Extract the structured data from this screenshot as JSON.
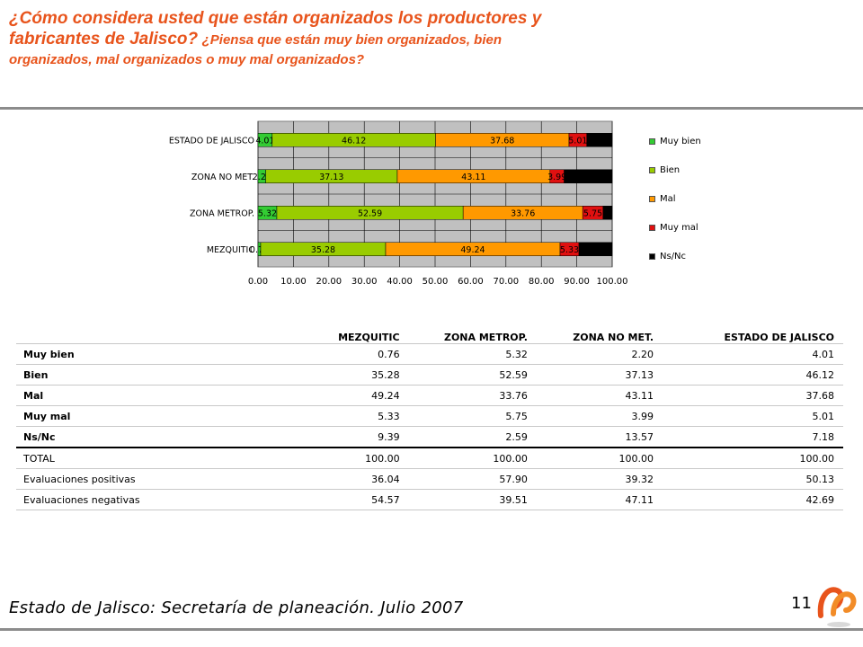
{
  "title": {
    "line_main": "¿Cómo considera usted que están organizados los productores y fabricantes de Jalisco?",
    "line_sub": "¿Piensa que están muy bien organizados, bien organizados, mal organizados o muy mal organizados?"
  },
  "chart_data": {
    "type": "bar",
    "orientation": "horizontal",
    "stacked": true,
    "categories": [
      "ESTADO DE JALISCO",
      "ZONA NO MET.",
      "ZONA METROP.",
      "MEZQUITIC"
    ],
    "series": [
      {
        "name": "Muy bien",
        "color": "#33cc33",
        "values": [
          4.01,
          2.2,
          5.32,
          0.76
        ],
        "labels": [
          "4.01",
          "2.20",
          "5.32",
          "0.76"
        ]
      },
      {
        "name": "Bien",
        "color": "#99cc00",
        "values": [
          46.12,
          37.13,
          52.59,
          35.28
        ],
        "labels": [
          "46.12",
          "37.13",
          "52.59",
          "35.28"
        ]
      },
      {
        "name": "Mal",
        "color": "#ff9900",
        "values": [
          37.68,
          43.11,
          33.76,
          49.24
        ],
        "labels": [
          "37.68",
          "43.11",
          "33.76",
          "49.24"
        ]
      },
      {
        "name": "Muy mal",
        "color": "#e01010",
        "values": [
          5.01,
          3.99,
          5.75,
          5.33
        ],
        "labels": [
          "5.01",
          "3.99",
          "5.75",
          "5.33"
        ]
      },
      {
        "name": "Ns/Nc",
        "color": "#000000",
        "values": [
          7.18,
          13.57,
          2.59,
          9.39
        ],
        "labels": [
          "",
          "",
          "",
          ""
        ]
      }
    ],
    "xlim": [
      0,
      100
    ],
    "xticks": [
      "0.00",
      "10.00",
      "20.00",
      "30.00",
      "40.00",
      "50.00",
      "60.00",
      "70.00",
      "80.00",
      "90.00",
      "100.00"
    ],
    "grid": true,
    "legend_position": "right",
    "plot_background": "#c0c0c0"
  },
  "table": {
    "columns": [
      "MEZQUITIC",
      "ZONA METROP.",
      "ZONA NO MET.",
      "ESTADO DE JALISCO"
    ],
    "rows": [
      {
        "label": "Muy bien",
        "values": [
          "0.76",
          "5.32",
          "2.20",
          "4.01"
        ]
      },
      {
        "label": "Bien",
        "values": [
          "35.28",
          "52.59",
          "37.13",
          "46.12"
        ]
      },
      {
        "label": "Mal",
        "values": [
          "49.24",
          "33.76",
          "43.11",
          "37.68"
        ]
      },
      {
        "label": "Muy mal",
        "values": [
          "5.33",
          "5.75",
          "3.99",
          "5.01"
        ]
      },
      {
        "label": "Ns/Nc",
        "values": [
          "9.39",
          "2.59",
          "13.57",
          "7.18"
        ]
      },
      {
        "label": "TOTAL",
        "values": [
          "100.00",
          "100.00",
          "100.00",
          "100.00"
        ]
      },
      {
        "label": "Evaluaciones positivas",
        "values": [
          "36.04",
          "57.90",
          "39.32",
          "50.13"
        ]
      },
      {
        "label": "Evaluaciones negativas",
        "values": [
          "54.57",
          "39.51",
          "47.11",
          "42.69"
        ]
      }
    ]
  },
  "footer": {
    "source": "Estado de Jalisco: Secretaría de planeación. Julio 2007",
    "page_number": "11",
    "logo_icon": "brand-swirl-logo-icon"
  }
}
